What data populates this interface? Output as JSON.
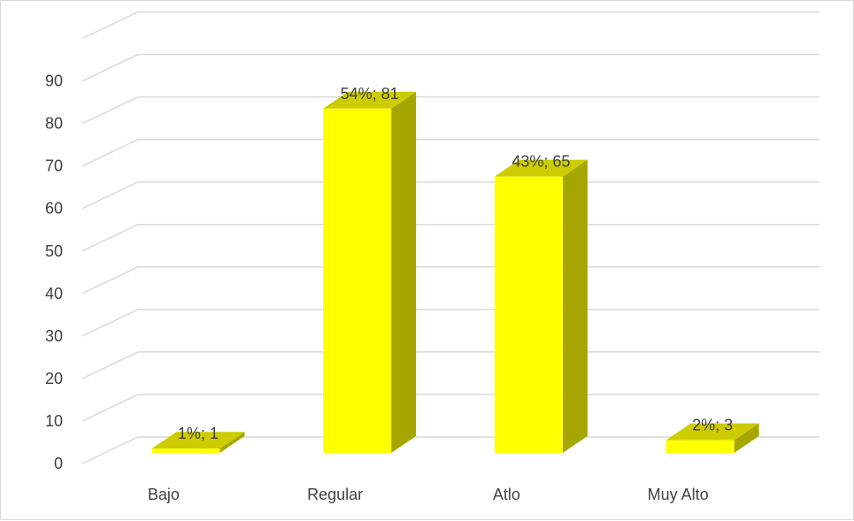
{
  "chart_data": {
    "type": "bar",
    "style": "3d-column",
    "categories": [
      "Bajo",
      "Regular",
      "Atlo",
      "Muy Alto"
    ],
    "values": [
      1,
      81,
      65,
      3
    ],
    "data_labels": [
      "1%; 1",
      "54%; 81",
      "43%; 65",
      "2%; 3"
    ],
    "yticks": [
      "0",
      "10",
      "20",
      "30",
      "40",
      "50",
      "60",
      "70",
      "80",
      "90"
    ],
    "ylim": [
      0,
      100
    ],
    "grid": true,
    "legend": "none",
    "colors": {
      "bar_front": "#ffff00",
      "bar_top": "#cccc00",
      "bar_side": "#a6a600",
      "grid": "#d9d9d9",
      "text": "#404040"
    }
  }
}
